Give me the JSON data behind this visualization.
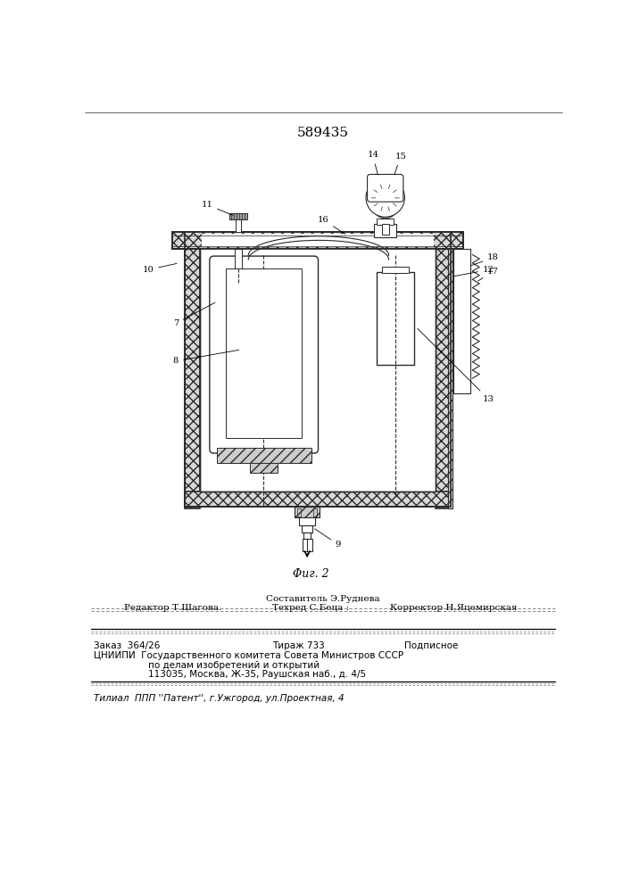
{
  "patent_number": "589435",
  "fig_label": "Φиг. 2",
  "bg_color": "#f5f5f0",
  "lc": "#2a2a2a",
  "footer": {
    "line1": "Составитель Э.Руднева",
    "line2_left": "Редактор Т.Шагова.",
    "line2_mid": "Техред С.Беца :",
    "line2_right": "Корректор Н.Яцемирская",
    "line3_left": "Заказ  364/26",
    "line3_mid": "Тираж 733",
    "line3_right": "Подписное",
    "line4": "ЦНИИПИ  Государственного комитета Совета Министров СССР",
    "line5": "по делам изобретений и открытий",
    "line6": "113035, Москва, Ж-35, Раушская наб., д. 4/5",
    "line7": "Τилиал  ППП ''Патент'', г.Ужгород, ул.Проектная, 4"
  }
}
